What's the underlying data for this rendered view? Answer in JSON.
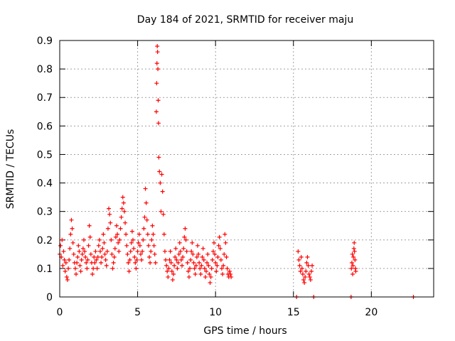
{
  "chart_data": {
    "type": "scatter",
    "title": "Day 184 of 2021, SRMTID for receiver maju",
    "xlabel": "GPS time / hours",
    "ylabel": "SRMTID / TECUs",
    "xlim": [
      0,
      24
    ],
    "ylim": [
      0,
      0.9
    ],
    "xticks": [
      0,
      5,
      10,
      15,
      20
    ],
    "xtick_labels": [
      "0",
      "5",
      "10",
      "15",
      "20"
    ],
    "yticks": [
      0,
      0.1,
      0.2,
      0.3,
      0.4,
      0.5,
      0.6,
      0.7,
      0.8,
      0.9
    ],
    "ytick_labels": [
      "0",
      "0.1",
      "0.2",
      "0.3",
      "0.4",
      "0.5",
      "0.6",
      "0.7",
      "0.8",
      "0.9"
    ],
    "grid": true,
    "marker": "+",
    "color": "#ff0000",
    "series": [
      {
        "name": "SRMTID",
        "points": [
          [
            0.0,
            0.15
          ],
          [
            0.05,
            0.18
          ],
          [
            0.1,
            0.14
          ],
          [
            0.15,
            0.2
          ],
          [
            0.2,
            0.11
          ],
          [
            0.25,
            0.16
          ],
          [
            0.3,
            0.13
          ],
          [
            0.35,
            0.09
          ],
          [
            0.4,
            0.12
          ],
          [
            0.45,
            0.07
          ],
          [
            0.5,
            0.06
          ],
          [
            0.55,
            0.1
          ],
          [
            0.6,
            0.13
          ],
          [
            0.65,
            0.17
          ],
          [
            0.7,
            0.22
          ],
          [
            0.75,
            0.27
          ],
          [
            0.8,
            0.24
          ],
          [
            0.85,
            0.19
          ],
          [
            0.9,
            0.15
          ],
          [
            0.95,
            0.12
          ],
          [
            1.0,
            0.1
          ],
          [
            1.05,
            0.08
          ],
          [
            1.1,
            0.12
          ],
          [
            1.15,
            0.14
          ],
          [
            1.2,
            0.18
          ],
          [
            1.25,
            0.16
          ],
          [
            1.3,
            0.11
          ],
          [
            1.35,
            0.09
          ],
          [
            1.4,
            0.13
          ],
          [
            1.45,
            0.15
          ],
          [
            1.5,
            0.17
          ],
          [
            1.55,
            0.2
          ],
          [
            1.6,
            0.16
          ],
          [
            1.65,
            0.14
          ],
          [
            1.7,
            0.12
          ],
          [
            1.75,
            0.1
          ],
          [
            1.8,
            0.13
          ],
          [
            1.85,
            0.18
          ],
          [
            1.9,
            0.25
          ],
          [
            1.95,
            0.21
          ],
          [
            2.0,
            0.15
          ],
          [
            2.05,
            0.12
          ],
          [
            2.1,
            0.08
          ],
          [
            2.15,
            0.1
          ],
          [
            2.2,
            0.14
          ],
          [
            2.25,
            0.12
          ],
          [
            2.3,
            0.16
          ],
          [
            2.35,
            0.13
          ],
          [
            2.4,
            0.1
          ],
          [
            2.45,
            0.14
          ],
          [
            2.5,
            0.18
          ],
          [
            2.55,
            0.2
          ],
          [
            2.6,
            0.16
          ],
          [
            2.65,
            0.12
          ],
          [
            2.7,
            0.14
          ],
          [
            2.75,
            0.17
          ],
          [
            2.8,
            0.22
          ],
          [
            2.85,
            0.19
          ],
          [
            2.9,
            0.15
          ],
          [
            2.95,
            0.13
          ],
          [
            3.0,
            0.11
          ],
          [
            3.05,
            0.16
          ],
          [
            3.1,
            0.24
          ],
          [
            3.15,
            0.31
          ],
          [
            3.2,
            0.29
          ],
          [
            3.25,
            0.26
          ],
          [
            3.3,
            0.2
          ],
          [
            3.35,
            0.15
          ],
          [
            3.4,
            0.1
          ],
          [
            3.45,
            0.12
          ],
          [
            3.5,
            0.14
          ],
          [
            3.55,
            0.17
          ],
          [
            3.6,
            0.21
          ],
          [
            3.65,
            0.25
          ],
          [
            3.7,
            0.22
          ],
          [
            3.75,
            0.19
          ],
          [
            3.8,
            0.16
          ],
          [
            3.85,
            0.2
          ],
          [
            3.9,
            0.24
          ],
          [
            3.95,
            0.28
          ],
          [
            4.0,
            0.31
          ],
          [
            4.05,
            0.35
          ],
          [
            4.1,
            0.33
          ],
          [
            4.15,
            0.3
          ],
          [
            4.2,
            0.26
          ],
          [
            4.25,
            0.22
          ],
          [
            4.3,
            0.18
          ],
          [
            4.35,
            0.15
          ],
          [
            4.4,
            0.12
          ],
          [
            4.45,
            0.09
          ],
          [
            4.5,
            0.13
          ],
          [
            4.55,
            0.16
          ],
          [
            4.6,
            0.19
          ],
          [
            4.65,
            0.23
          ],
          [
            4.7,
            0.2
          ],
          [
            4.75,
            0.17
          ],
          [
            4.8,
            0.14
          ],
          [
            4.85,
            0.12
          ],
          [
            4.9,
            0.1
          ],
          [
            4.95,
            0.13
          ],
          [
            5.0,
            0.16
          ],
          [
            5.05,
            0.19
          ],
          [
            5.1,
            0.22
          ],
          [
            5.15,
            0.18
          ],
          [
            5.2,
            0.15
          ],
          [
            5.25,
            0.13
          ],
          [
            5.3,
            0.16
          ],
          [
            5.35,
            0.2
          ],
          [
            5.4,
            0.24
          ],
          [
            5.45,
            0.28
          ],
          [
            5.5,
            0.38
          ],
          [
            5.55,
            0.33
          ],
          [
            5.6,
            0.27
          ],
          [
            5.65,
            0.22
          ],
          [
            5.7,
            0.18
          ],
          [
            5.75,
            0.14
          ],
          [
            5.8,
            0.12
          ],
          [
            5.85,
            0.16
          ],
          [
            5.9,
            0.2
          ],
          [
            5.95,
            0.25
          ],
          [
            6.0,
            0.22
          ],
          [
            6.05,
            0.18
          ],
          [
            6.1,
            0.15
          ],
          [
            6.15,
            0.12
          ],
          [
            6.2,
            0.65
          ],
          [
            6.22,
            0.75
          ],
          [
            6.24,
            0.82
          ],
          [
            6.26,
            0.88
          ],
          [
            6.28,
            0.86
          ],
          [
            6.3,
            0.8
          ],
          [
            6.32,
            0.69
          ],
          [
            6.34,
            0.61
          ],
          [
            6.36,
            0.49
          ],
          [
            6.4,
            0.44
          ],
          [
            6.45,
            0.4
          ],
          [
            6.5,
            0.3
          ],
          [
            6.55,
            0.43
          ],
          [
            6.6,
            0.37
          ],
          [
            6.65,
            0.29
          ],
          [
            6.7,
            0.22
          ],
          [
            6.75,
            0.16
          ],
          [
            6.8,
            0.13
          ],
          [
            6.85,
            0.11
          ],
          [
            6.9,
            0.09
          ],
          [
            6.95,
            0.07
          ],
          [
            7.0,
            0.1
          ],
          [
            7.05,
            0.13
          ],
          [
            7.1,
            0.16
          ],
          [
            7.15,
            0.12
          ],
          [
            7.2,
            0.09
          ],
          [
            7.25,
            0.06
          ],
          [
            7.3,
            0.08
          ],
          [
            7.35,
            0.11
          ],
          [
            7.4,
            0.14
          ],
          [
            7.45,
            0.17
          ],
          [
            7.5,
            0.13
          ],
          [
            7.55,
            0.1
          ],
          [
            7.6,
            0.12
          ],
          [
            7.65,
            0.15
          ],
          [
            7.7,
            0.19
          ],
          [
            7.75,
            0.16
          ],
          [
            7.8,
            0.13
          ],
          [
            7.85,
            0.11
          ],
          [
            7.9,
            0.14
          ],
          [
            7.95,
            0.17
          ],
          [
            8.0,
            0.21
          ],
          [
            8.05,
            0.24
          ],
          [
            8.1,
            0.2
          ],
          [
            8.15,
            0.16
          ],
          [
            8.2,
            0.12
          ],
          [
            8.25,
            0.09
          ],
          [
            8.3,
            0.07
          ],
          [
            8.35,
            0.1
          ],
          [
            8.4,
            0.13
          ],
          [
            8.45,
            0.16
          ],
          [
            8.5,
            0.19
          ],
          [
            8.55,
            0.15
          ],
          [
            8.6,
            0.12
          ],
          [
            8.65,
            0.1
          ],
          [
            8.7,
            0.08
          ],
          [
            8.75,
            0.11
          ],
          [
            8.8,
            0.14
          ],
          [
            8.85,
            0.18
          ],
          [
            8.9,
            0.15
          ],
          [
            8.95,
            0.12
          ],
          [
            9.0,
            0.1
          ],
          [
            9.05,
            0.08
          ],
          [
            9.1,
            0.11
          ],
          [
            9.15,
            0.14
          ],
          [
            9.2,
            0.17
          ],
          [
            9.25,
            0.13
          ],
          [
            9.3,
            0.1
          ],
          [
            9.35,
            0.07
          ],
          [
            9.4,
            0.09
          ],
          [
            9.45,
            0.12
          ],
          [
            9.5,
            0.15
          ],
          [
            9.55,
            0.11
          ],
          [
            9.6,
            0.08
          ],
          [
            9.65,
            0.05
          ],
          [
            9.7,
            0.07
          ],
          [
            9.75,
            0.1
          ],
          [
            9.8,
            0.13
          ],
          [
            9.85,
            0.16
          ],
          [
            9.9,
            0.19
          ],
          [
            9.95,
            0.15
          ],
          [
            10.0,
            0.12
          ],
          [
            10.05,
            0.09
          ],
          [
            10.1,
            0.11
          ],
          [
            10.15,
            0.14
          ],
          [
            10.2,
            0.18
          ],
          [
            10.25,
            0.21
          ],
          [
            10.3,
            0.17
          ],
          [
            10.35,
            0.13
          ],
          [
            10.4,
            0.1
          ],
          [
            10.45,
            0.08
          ],
          [
            10.5,
            0.11
          ],
          [
            10.55,
            0.15
          ],
          [
            10.6,
            0.22
          ],
          [
            10.65,
            0.19
          ],
          [
            10.7,
            0.14
          ],
          [
            10.75,
            0.1
          ],
          [
            10.8,
            0.08
          ],
          [
            10.85,
            0.07
          ],
          [
            10.9,
            0.09
          ],
          [
            10.95,
            0.08
          ],
          [
            11.0,
            0.07
          ],
          [
            15.2,
            0.0
          ],
          [
            15.3,
            0.16
          ],
          [
            15.35,
            0.13
          ],
          [
            15.4,
            0.11
          ],
          [
            15.45,
            0.09
          ],
          [
            15.5,
            0.14
          ],
          [
            15.55,
            0.1
          ],
          [
            15.6,
            0.08
          ],
          [
            15.65,
            0.06
          ],
          [
            15.7,
            0.05
          ],
          [
            15.75,
            0.07
          ],
          [
            15.8,
            0.09
          ],
          [
            15.85,
            0.12
          ],
          [
            15.9,
            0.14
          ],
          [
            15.95,
            0.11
          ],
          [
            16.0,
            0.08
          ],
          [
            16.05,
            0.07
          ],
          [
            16.1,
            0.06
          ],
          [
            16.15,
            0.09
          ],
          [
            16.2,
            0.11
          ],
          [
            16.3,
            0.0
          ],
          [
            18.7,
            0.0
          ],
          [
            18.72,
            0.1
          ],
          [
            18.75,
            0.12
          ],
          [
            18.78,
            0.15
          ],
          [
            18.8,
            0.08
          ],
          [
            18.82,
            0.11
          ],
          [
            18.85,
            0.14
          ],
          [
            18.88,
            0.17
          ],
          [
            18.9,
            0.19
          ],
          [
            18.92,
            0.16
          ],
          [
            18.95,
            0.13
          ],
          [
            18.98,
            0.1
          ],
          [
            19.0,
            0.09
          ],
          [
            22.7,
            0.0
          ]
        ]
      }
    ]
  }
}
